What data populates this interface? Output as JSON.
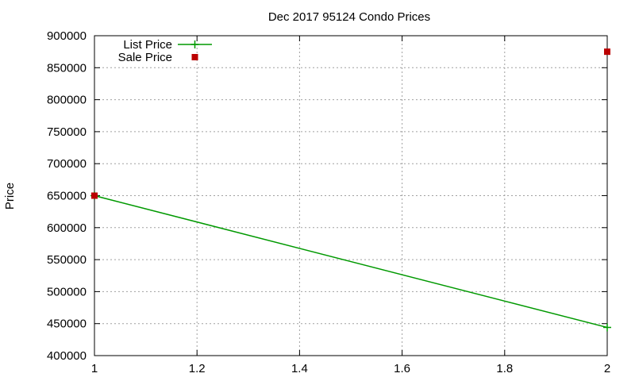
{
  "chart_data": {
    "type": "line",
    "title": "Dec 2017 95124 Condo Prices",
    "xlabel": "",
    "ylabel": "Price",
    "xlim": [
      1,
      2
    ],
    "ylim": [
      400000,
      900000
    ],
    "x_ticks": [
      "1",
      "1.2",
      "1.4",
      "1.6",
      "1.8",
      "2"
    ],
    "x_tick_values": [
      1,
      1.2,
      1.4,
      1.6,
      1.8,
      2
    ],
    "y_ticks": [
      "400000",
      "450000",
      "500000",
      "550000",
      "600000",
      "650000",
      "700000",
      "750000",
      "800000",
      "850000",
      "900000"
    ],
    "y_tick_values": [
      400000,
      450000,
      500000,
      550000,
      600000,
      650000,
      700000,
      750000,
      800000,
      850000,
      900000
    ],
    "grid": true,
    "legend_position": "top-left",
    "series": [
      {
        "name": "List Price",
        "style": "linespoints",
        "color": "#009900",
        "x": [
          1,
          2
        ],
        "values": [
          650000,
          444000
        ]
      },
      {
        "name": "Sale Price",
        "style": "points",
        "color": "#bb0000",
        "x": [
          1,
          2
        ],
        "values": [
          650000,
          875000
        ]
      }
    ]
  }
}
